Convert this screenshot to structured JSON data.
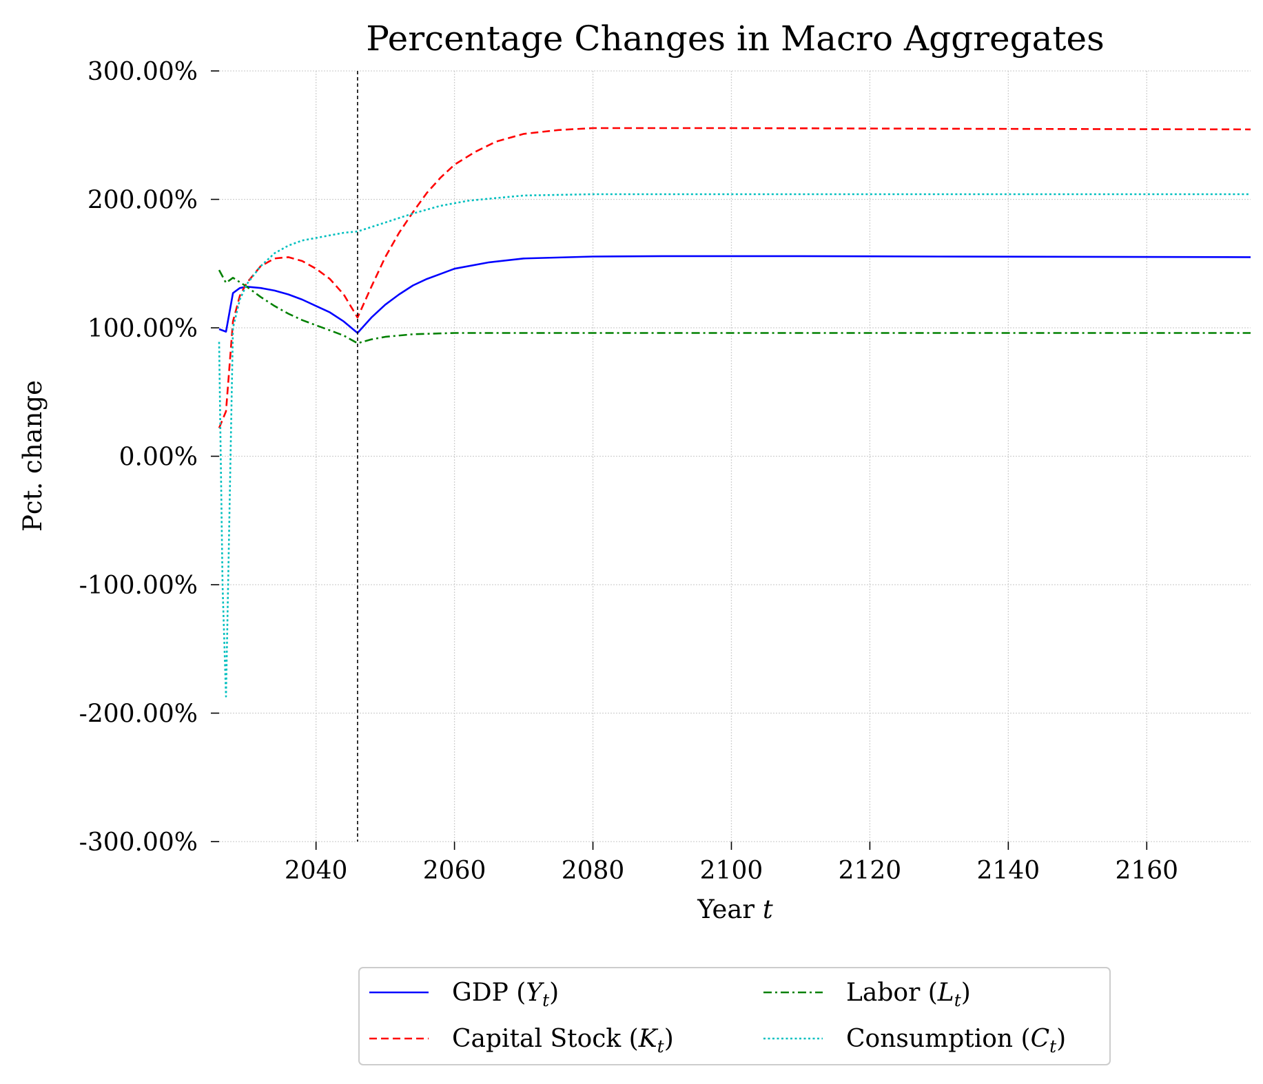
{
  "chart_data": {
    "type": "line",
    "title": "Percentage Changes in Macro Aggregates",
    "xlabel": "Year t",
    "ylabel": "Pct. change",
    "xlim": [
      2026,
      2175
    ],
    "ylim": [
      -300,
      300
    ],
    "x_ticks": [
      2040,
      2060,
      2080,
      2100,
      2120,
      2140,
      2160
    ],
    "x_tick_labels": [
      "2040",
      "2060",
      "2080",
      "2100",
      "2120",
      "2140",
      "2160"
    ],
    "y_ticks": [
      300,
      200,
      100,
      0,
      -100,
      -200,
      -300
    ],
    "y_tick_labels": [
      "300.00%",
      "200.00%",
      "100.00%",
      "0.00%",
      "-100.00%",
      "-200.00%",
      "-300.00%"
    ],
    "grid": true,
    "vline_x": 2046,
    "legend_placement": "bottom-center",
    "series": [
      {
        "name": "GDP (Yt)",
        "color": "#0000ff",
        "style": "solid",
        "points": [
          [
            2026,
            99
          ],
          [
            2027,
            97
          ],
          [
            2028,
            127
          ],
          [
            2029,
            131
          ],
          [
            2030,
            132
          ],
          [
            2032,
            131
          ],
          [
            2034,
            129
          ],
          [
            2036,
            126
          ],
          [
            2038,
            122
          ],
          [
            2040,
            117
          ],
          [
            2042,
            112
          ],
          [
            2044,
            105
          ],
          [
            2046,
            96
          ],
          [
            2048,
            108
          ],
          [
            2050,
            118
          ],
          [
            2052,
            126
          ],
          [
            2054,
            133
          ],
          [
            2056,
            138
          ],
          [
            2058,
            142
          ],
          [
            2060,
            146
          ],
          [
            2065,
            151
          ],
          [
            2070,
            154
          ],
          [
            2080,
            155.5
          ],
          [
            2090,
            155.8
          ],
          [
            2110,
            155.8
          ],
          [
            2130,
            155.5
          ],
          [
            2175,
            155
          ]
        ]
      },
      {
        "name": "Capital Stock (Kt)",
        "color": "#ff0000",
        "style": "dashed",
        "points": [
          [
            2026,
            22
          ],
          [
            2027,
            35
          ],
          [
            2028,
            105
          ],
          [
            2029,
            125
          ],
          [
            2030,
            135
          ],
          [
            2032,
            148
          ],
          [
            2034,
            154
          ],
          [
            2036,
            155
          ],
          [
            2038,
            152
          ],
          [
            2040,
            146
          ],
          [
            2042,
            138
          ],
          [
            2044,
            126
          ],
          [
            2046,
            108
          ],
          [
            2048,
            132
          ],
          [
            2050,
            155
          ],
          [
            2052,
            174
          ],
          [
            2054,
            190
          ],
          [
            2056,
            205
          ],
          [
            2058,
            217
          ],
          [
            2060,
            227
          ],
          [
            2063,
            237
          ],
          [
            2066,
            245
          ],
          [
            2070,
            251
          ],
          [
            2075,
            254
          ],
          [
            2080,
            255.5
          ],
          [
            2100,
            255.5
          ],
          [
            2130,
            255
          ],
          [
            2175,
            254.5
          ]
        ]
      },
      {
        "name": "Labor (Lt)",
        "color": "#008000",
        "style": "dashdot",
        "points": [
          [
            2026,
            145
          ],
          [
            2027,
            135
          ],
          [
            2028,
            139
          ],
          [
            2030,
            132
          ],
          [
            2032,
            124
          ],
          [
            2034,
            117
          ],
          [
            2036,
            111
          ],
          [
            2038,
            106
          ],
          [
            2040,
            102
          ],
          [
            2042,
            98
          ],
          [
            2044,
            94
          ],
          [
            2046,
            88
          ],
          [
            2048,
            91
          ],
          [
            2050,
            93
          ],
          [
            2054,
            95
          ],
          [
            2060,
            96
          ],
          [
            2080,
            96
          ],
          [
            2120,
            96
          ],
          [
            2175,
            96
          ]
        ]
      },
      {
        "name": "Consumption (Ct)",
        "color": "#00bfbf",
        "style": "dotted",
        "points": [
          [
            2026,
            89
          ],
          [
            2026.5,
            -100
          ],
          [
            2027,
            -187
          ],
          [
            2028,
            100
          ],
          [
            2029,
            122
          ],
          [
            2030,
            134
          ],
          [
            2032,
            148
          ],
          [
            2034,
            158
          ],
          [
            2036,
            164
          ],
          [
            2038,
            168
          ],
          [
            2040,
            170
          ],
          [
            2042,
            172
          ],
          [
            2044,
            174
          ],
          [
            2046,
            175
          ],
          [
            2050,
            182
          ],
          [
            2054,
            189
          ],
          [
            2058,
            195
          ],
          [
            2062,
            199
          ],
          [
            2066,
            201
          ],
          [
            2070,
            203
          ],
          [
            2080,
            204
          ],
          [
            2100,
            204
          ],
          [
            2140,
            204
          ],
          [
            2175,
            204
          ]
        ]
      }
    ]
  }
}
